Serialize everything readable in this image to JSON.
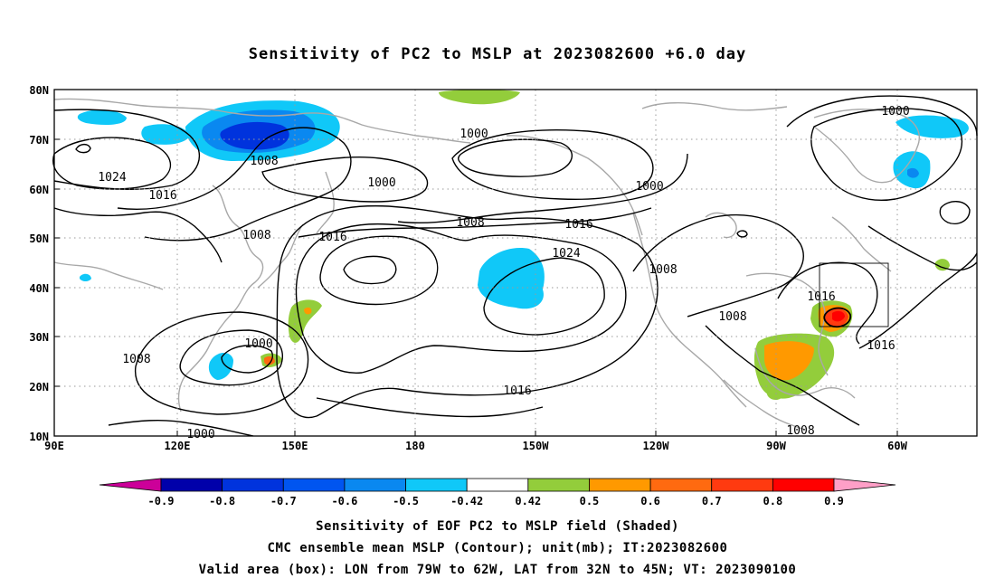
{
  "title": "Sensitivity of PC2 to MSLP at 2023082600 +6.0 day",
  "map": {
    "lon_ticks": [
      "90E",
      "120E",
      "150E",
      "180",
      "150W",
      "120W",
      "90W",
      "60W"
    ],
    "lat_ticks": [
      "80N",
      "70N",
      "60N",
      "50N",
      "40N",
      "30N",
      "20N",
      "10N"
    ],
    "contour_labels": [
      "1000",
      "1000",
      "1000",
      "1000",
      "1000",
      "1000",
      "1008",
      "1008",
      "1008",
      "1008",
      "1008",
      "1008",
      "1008",
      "1016",
      "1016",
      "1016",
      "1016",
      "1016",
      "1016",
      "1024",
      "1024"
    ],
    "box": {
      "lon_from": "79W",
      "lon_to": "62W",
      "lat_from": "32N",
      "lat_to": "45N"
    }
  },
  "colorbar": {
    "labels": [
      "-0.9",
      "-0.8",
      "-0.7",
      "-0.6",
      "-0.5",
      "-0.42",
      "0.42",
      "0.5",
      "0.6",
      "0.7",
      "0.8",
      "0.9"
    ],
    "colors": [
      "#0000aa",
      "#0033dd",
      "#0055f0",
      "#0a88f0",
      "#10c8f8",
      "#ffffff",
      "#93cd3b",
      "#ff9900",
      "#ff6a10",
      "#ff3a10",
      "#ff0000"
    ],
    "low_end_color": "#cc0099",
    "high_end_color": "#ff9fc7"
  },
  "caption": {
    "line1": "Sensitivity of EOF PC2 to MSLP field (Shaded)",
    "line2": "CMC ensemble mean MSLP (Contour); unit(mb); IT:2023082600",
    "line3": "Valid area (box): LON from 79W to 62W, LAT from 32N to 45N; VT: 2023090100"
  }
}
